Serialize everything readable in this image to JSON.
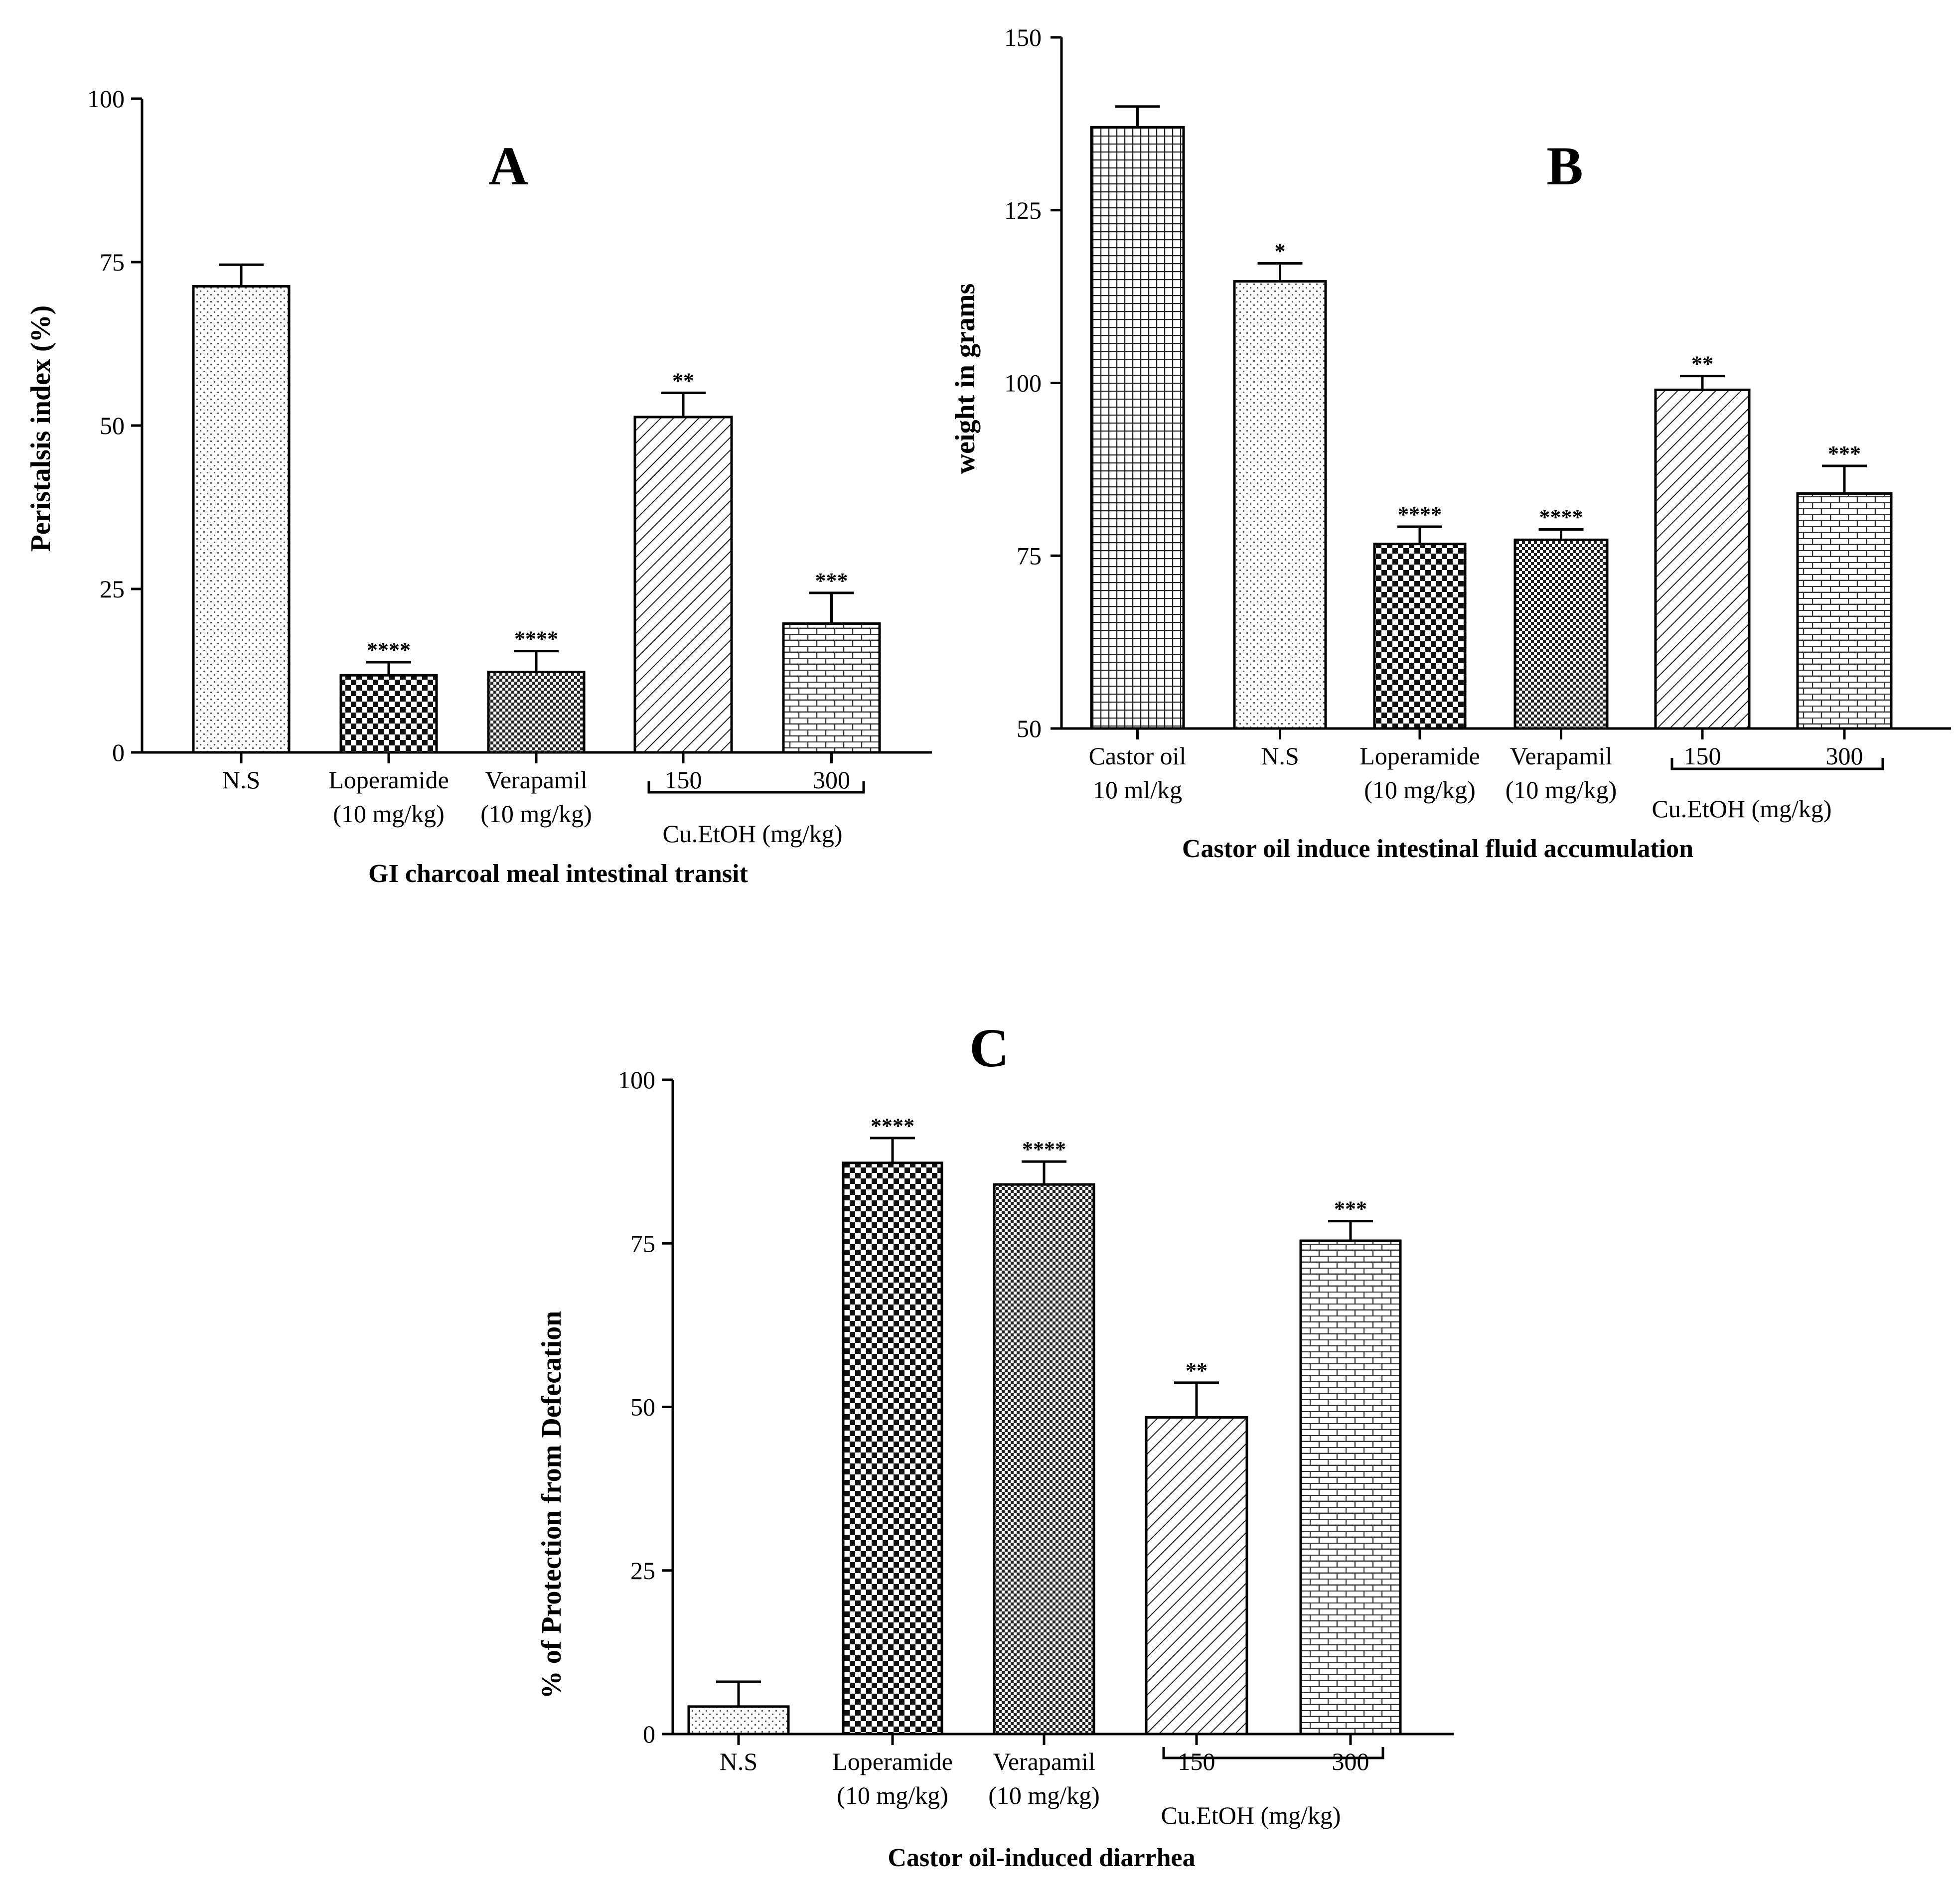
{
  "chart_data": [
    {
      "type": "bar",
      "panel": "A",
      "title": "A",
      "ylabel": "Peristalsis index (%)",
      "xlabel": "GI charcoal meal intestinal transit",
      "ylim": [
        0,
        100
      ],
      "yticks": [
        "0",
        "25",
        "50",
        "75",
        "100"
      ],
      "group_label": "Cu.EtOH (mg/kg)",
      "categories": [
        {
          "line1": "N.S",
          "line2": "",
          "grouped": false
        },
        {
          "line1": "Loperamide",
          "line2": "(10 mg/kg)",
          "grouped": false
        },
        {
          "line1": "Verapamil",
          "line2": "(10 mg/kg)",
          "grouped": false
        },
        {
          "line1": "150",
          "line2": "",
          "grouped": true
        },
        {
          "line1": "300",
          "line2": "",
          "grouped": true
        }
      ],
      "values": [
        71.3,
        11.8,
        12.3,
        51.3,
        19.7
      ],
      "errors": [
        3.3,
        2.0,
        3.2,
        3.7,
        4.7
      ],
      "significance": [
        "",
        "****",
        "****",
        "**",
        "***"
      ],
      "patterns": [
        "dots",
        "checker",
        "fine-checker",
        "diag",
        "brick"
      ]
    },
    {
      "type": "bar",
      "panel": "B",
      "title": "B",
      "ylabel": "weight in grams",
      "xlabel": "Castor oil induce intestinal fluid accumulation",
      "ylim": [
        50,
        150
      ],
      "yticks": [
        "50",
        "75",
        "100",
        "125",
        "150"
      ],
      "group_label": "Cu.EtOH (mg/kg)",
      "categories": [
        {
          "line1": "Castor oil",
          "line2": "10 ml/kg",
          "grouped": false
        },
        {
          "line1": "N.S",
          "line2": "",
          "grouped": false
        },
        {
          "line1": "Loperamide",
          "line2": "(10 mg/kg)",
          "grouped": false
        },
        {
          "line1": "Verapamil",
          "line2": "(10 mg/kg)",
          "grouped": false
        },
        {
          "line1": "150",
          "line2": "",
          "grouped": true
        },
        {
          "line1": "300",
          "line2": "",
          "grouped": true
        }
      ],
      "values": [
        137.0,
        114.7,
        76.7,
        77.3,
        99.0,
        84.0
      ],
      "errors": [
        3.0,
        2.6,
        2.5,
        1.5,
        2.0,
        4.0
      ],
      "significance": [
        "",
        "*",
        "****",
        "****",
        "**",
        "***"
      ],
      "patterns": [
        "grid",
        "dots",
        "checker",
        "fine-checker",
        "diag",
        "brick"
      ]
    },
    {
      "type": "bar",
      "panel": "C",
      "title": "C",
      "ylabel": "% of Protection from Defecation",
      "xlabel": "Castor oil-induced diarrhea",
      "ylim": [
        0,
        100
      ],
      "yticks": [
        "0",
        "25",
        "50",
        "75",
        "100"
      ],
      "group_label": "Cu.EtOH (mg/kg)",
      "categories": [
        {
          "line1": "N.S",
          "line2": "",
          "grouped": false
        },
        {
          "line1": "Loperamide",
          "line2": "(10 mg/kg)",
          "grouped": false
        },
        {
          "line1": "Verapamil",
          "line2": "(10 mg/kg)",
          "grouped": false
        },
        {
          "line1": "150",
          "line2": "",
          "grouped": true
        },
        {
          "line1": "300",
          "line2": "",
          "grouped": true
        }
      ],
      "values": [
        4.2,
        87.3,
        84.0,
        48.4,
        75.4
      ],
      "errors": [
        3.8,
        3.8,
        3.5,
        5.3,
        3.0
      ],
      "significance": [
        "",
        "****",
        "****",
        "**",
        "***"
      ],
      "patterns": [
        "dots",
        "checker",
        "fine-checker",
        "diag",
        "brick"
      ]
    }
  ]
}
